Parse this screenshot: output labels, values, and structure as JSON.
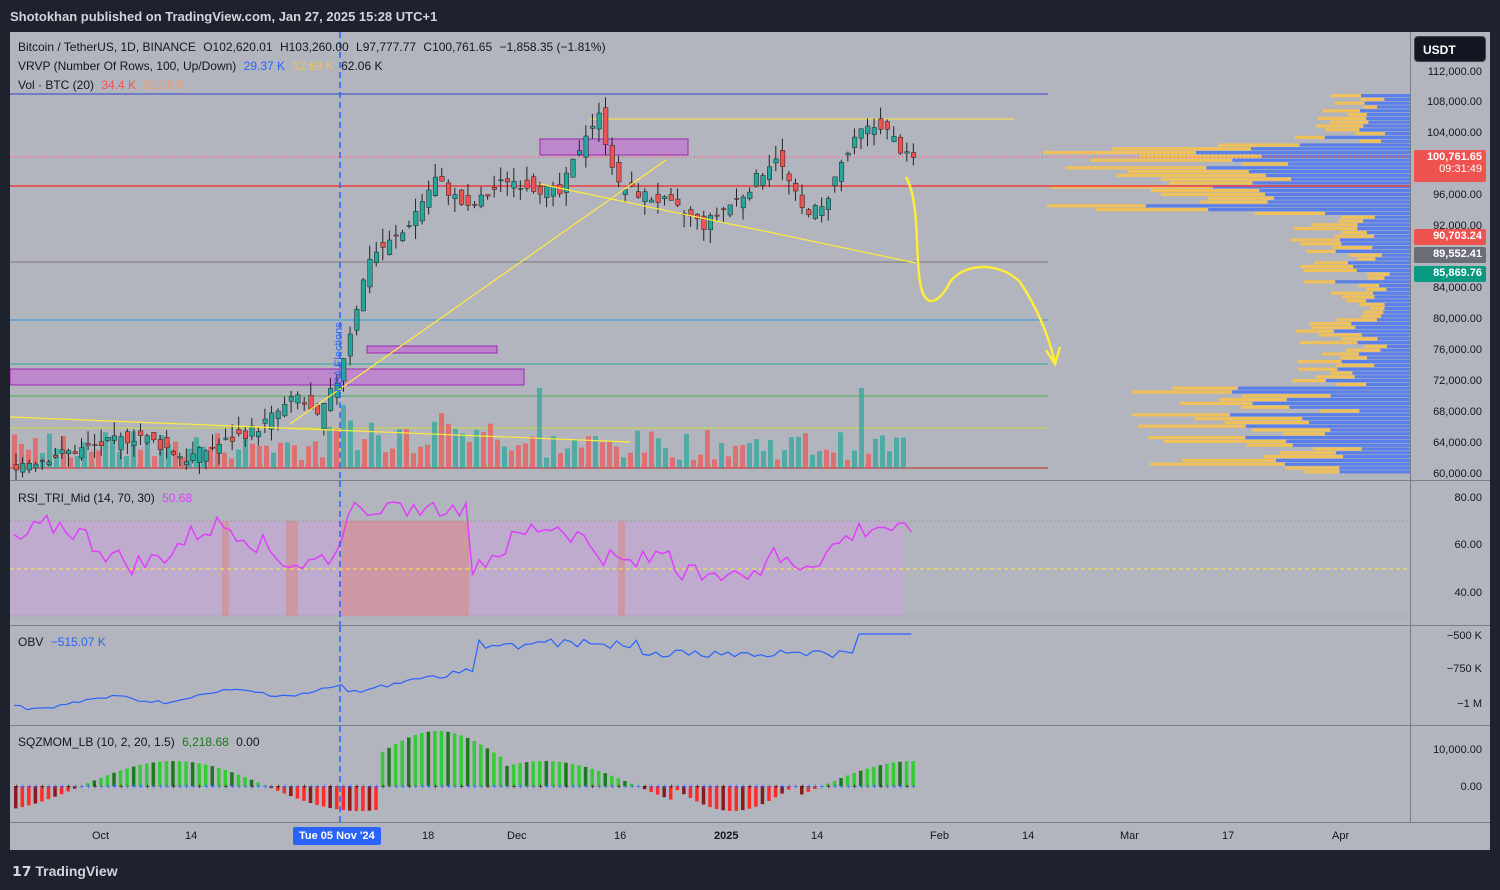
{
  "header": {
    "publisher": "Shotokhan published on TradingView.com, Jan 27, 2025 15:28 UTC+1"
  },
  "symbol": {
    "name": "Bitcoin / TetherUS, 1D, BINANCE",
    "open": "O102,620.01",
    "high": "H103,260.00",
    "low": "L97,777.77",
    "close": "C100,761.65",
    "change": "−1,858.35 (−1.81%)"
  },
  "indicators": {
    "vrvp": {
      "label": "VRVP (Number Of Rows, 100, Up/Down)",
      "v1": "29.37 K",
      "v2": "32.69 K",
      "v3": "62.06 K"
    },
    "vol": {
      "label": "Vol · BTC (20)",
      "v1": "34.4 K",
      "v2": "31.38 K"
    },
    "rsi": {
      "label": "RSI_TRI_Mid (14, 70, 30)",
      "value": "50.68"
    },
    "obv": {
      "label": "OBV",
      "value": "−515.07 K"
    },
    "sqz": {
      "label": "SQZMOM_LB (10, 2, 20, 1.5)",
      "v1": "6,218.68",
      "v2": "0.00"
    }
  },
  "price_axis": {
    "currency": "USDT",
    "ticks": [
      "112,000.00",
      "108,000.00",
      "104,000.00",
      "96,000.00",
      "92,000.00",
      "84,000.00",
      "80,000.00",
      "76,000.00",
      "72,000.00",
      "68,000.00",
      "64,000.00",
      "60,000.00"
    ],
    "last_price": "100,761.65",
    "countdown": "09:31:49",
    "tag_red": "90,703.24",
    "tag_gray": "89,552.41",
    "tag_green": "85,869.76"
  },
  "rsi_axis": {
    "ticks": [
      "80.00",
      "60.00",
      "40.00"
    ]
  },
  "obv_axis": {
    "ticks": [
      "−500 K",
      "−750 K",
      "−1 M"
    ]
  },
  "sqz_axis": {
    "ticks": [
      "10,000.00",
      "0.00"
    ]
  },
  "time_axis": {
    "labels": [
      "Oct",
      "14",
      "18",
      "Dec",
      "16",
      "2025",
      "14",
      "Feb",
      "14",
      "Mar",
      "17",
      "Apr"
    ],
    "crosshair": "Tue 05 Nov '24"
  },
  "annotation": {
    "vertical_label": "USA Elections"
  },
  "footer": {
    "brand": "TradingView"
  },
  "colors": {
    "up": "#26a69a",
    "down": "#ef5350",
    "yellow": "#ffeb3b",
    "blue_vp": "#5b7fe8",
    "orange_vp": "#f0c05a"
  }
}
